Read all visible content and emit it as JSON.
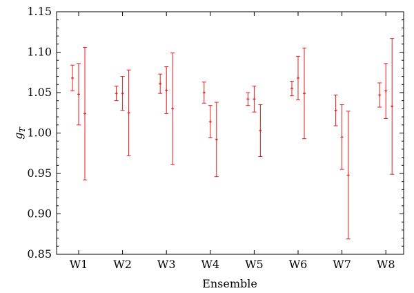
{
  "chart_data": {
    "type": "scatter",
    "xlabel": "Ensemble",
    "ylabel": "g",
    "ylabel_subscript": "T",
    "categories": [
      "W1",
      "W2",
      "W3",
      "W4",
      "W5",
      "W6",
      "W7",
      "W8"
    ],
    "ylim": [
      0.85,
      1.15
    ],
    "yticks": [
      "0.85",
      "0.90",
      "0.95",
      "1.00",
      "1.05",
      "1.10",
      "1.15"
    ],
    "grid": false,
    "marker_color": "#e41a1c",
    "series": [
      {
        "values": [
          1.068,
          1.049,
          1.061,
          1.05,
          1.042,
          1.055,
          1.028,
          1.047
        ],
        "errors": [
          0.016,
          0.009,
          0.012,
          0.013,
          0.008,
          0.009,
          0.019,
          0.015
        ]
      },
      {
        "values": [
          1.048,
          1.049,
          1.053,
          1.014,
          1.042,
          1.068,
          0.995,
          1.052
        ],
        "errors": [
          0.038,
          0.021,
          0.029,
          0.02,
          0.016,
          0.027,
          0.04,
          0.034
        ]
      },
      {
        "values": [
          1.024,
          1.025,
          1.03,
          0.992,
          1.003,
          1.049,
          0.948,
          1.033
        ],
        "errors": [
          0.082,
          0.053,
          0.069,
          0.046,
          0.032,
          0.056,
          0.079,
          0.084
        ]
      }
    ]
  }
}
